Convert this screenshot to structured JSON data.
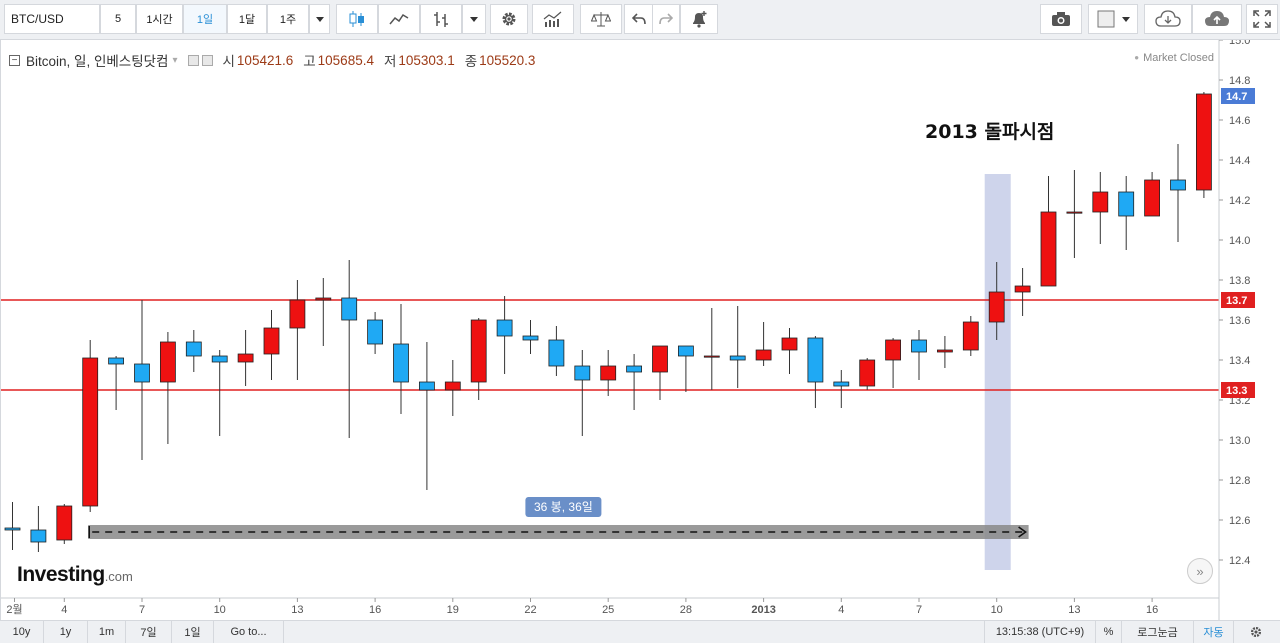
{
  "toolbar": {
    "symbol_value": "BTC/USD",
    "interval_value": "5",
    "timeframes": [
      "1시간",
      "1일",
      "1달",
      "1주"
    ],
    "active_timeframe": "1일",
    "icons": [
      "candlestick-icon",
      "line-chart-icon",
      "bar-chart-icon",
      "settings-gear-icon",
      "indicators-icon",
      "compare-scale-icon",
      "undo-icon",
      "redo-icon",
      "alert-bell-icon",
      "camera-icon",
      "color-square-icon",
      "cloud-download-icon",
      "cloud-upload-icon",
      "fullscreen-icon"
    ]
  },
  "legend": {
    "symbol": "Bitcoin, 일, 인베스팅닷컴",
    "open_label": "시",
    "open": "105421.6",
    "high_label": "고",
    "high": "105685.4",
    "low_label": "저",
    "low": "105303.1",
    "close_label": "종",
    "close": "105520.3"
  },
  "market_status": "Market Closed",
  "annotation_text": "2013 돌파시점",
  "measure_label": "36 봉, 36일",
  "logo": {
    "brand": "Investing",
    "suffix": ".com"
  },
  "scroll_button": "»",
  "colors": {
    "up": "#ee1111",
    "down": "#1fa9f4",
    "level_line": "#e02020",
    "current_price": "#4a7bd6",
    "highlight": "#b9c2e3",
    "measure": "#888888"
  },
  "chart_data": {
    "type": "candlestick",
    "ylim": [
      12.3,
      15.0
    ],
    "yticks": [
      "15.0",
      "14.8",
      "14.6",
      "14.4",
      "14.2",
      "14.0",
      "13.8",
      "13.6",
      "13.4",
      "13.2",
      "13.0",
      "12.8",
      "12.6",
      "12.4"
    ],
    "xticks": [
      {
        "label": "2월",
        "index": 0
      },
      {
        "label": "4",
        "index": 2
      },
      {
        "label": "7",
        "index": 5
      },
      {
        "label": "10",
        "index": 8
      },
      {
        "label": "13",
        "index": 11
      },
      {
        "label": "16",
        "index": 14
      },
      {
        "label": "19",
        "index": 17
      },
      {
        "label": "22",
        "index": 20
      },
      {
        "label": "25",
        "index": 23
      },
      {
        "label": "28",
        "index": 26
      },
      {
        "label": "2013",
        "index": 29
      },
      {
        "label": "4",
        "index": 32
      },
      {
        "label": "7",
        "index": 35
      },
      {
        "label": "10",
        "index": 38
      },
      {
        "label": "13",
        "index": 41
      },
      {
        "label": "16",
        "index": 44
      }
    ],
    "candles": [
      {
        "o": 12.56,
        "h": 12.69,
        "l": 12.45,
        "c": 12.55
      },
      {
        "o": 12.55,
        "h": 12.67,
        "l": 12.44,
        "c": 12.49
      },
      {
        "o": 12.5,
        "h": 12.68,
        "l": 12.48,
        "c": 12.67
      },
      {
        "o": 12.67,
        "h": 13.5,
        "l": 12.64,
        "c": 13.41
      },
      {
        "o": 13.41,
        "h": 13.42,
        "l": 13.15,
        "c": 13.38
      },
      {
        "o": 13.38,
        "h": 13.7,
        "l": 12.9,
        "c": 13.29
      },
      {
        "o": 13.29,
        "h": 13.54,
        "l": 12.98,
        "c": 13.49
      },
      {
        "o": 13.49,
        "h": 13.55,
        "l": 13.34,
        "c": 13.42
      },
      {
        "o": 13.42,
        "h": 13.45,
        "l": 13.02,
        "c": 13.39
      },
      {
        "o": 13.39,
        "h": 13.55,
        "l": 13.27,
        "c": 13.43
      },
      {
        "o": 13.43,
        "h": 13.65,
        "l": 13.3,
        "c": 13.56
      },
      {
        "o": 13.56,
        "h": 13.8,
        "l": 13.3,
        "c": 13.7
      },
      {
        "o": 13.7,
        "h": 13.81,
        "l": 13.47,
        "c": 13.71
      },
      {
        "o": 13.71,
        "h": 13.9,
        "l": 13.01,
        "c": 13.6
      },
      {
        "o": 13.6,
        "h": 13.64,
        "l": 13.43,
        "c": 13.48
      },
      {
        "o": 13.48,
        "h": 13.68,
        "l": 13.13,
        "c": 13.29
      },
      {
        "o": 13.29,
        "h": 13.49,
        "l": 12.75,
        "c": 13.25
      },
      {
        "o": 13.25,
        "h": 13.4,
        "l": 13.12,
        "c": 13.29
      },
      {
        "o": 13.29,
        "h": 13.61,
        "l": 13.2,
        "c": 13.6
      },
      {
        "o": 13.6,
        "h": 13.72,
        "l": 13.33,
        "c": 13.52
      },
      {
        "o": 13.52,
        "h": 13.6,
        "l": 13.43,
        "c": 13.5
      },
      {
        "o": 13.5,
        "h": 13.57,
        "l": 13.32,
        "c": 13.37
      },
      {
        "o": 13.37,
        "h": 13.45,
        "l": 13.02,
        "c": 13.3
      },
      {
        "o": 13.3,
        "h": 13.45,
        "l": 13.22,
        "c": 13.37
      },
      {
        "o": 13.37,
        "h": 13.43,
        "l": 13.15,
        "c": 13.34
      },
      {
        "o": 13.34,
        "h": 13.47,
        "l": 13.2,
        "c": 13.47
      },
      {
        "o": 13.47,
        "h": 13.47,
        "l": 13.24,
        "c": 13.42
      },
      {
        "o": 13.42,
        "h": 13.66,
        "l": 13.25,
        "c": 13.42
      },
      {
        "o": 13.42,
        "h": 13.67,
        "l": 13.26,
        "c": 13.4
      },
      {
        "o": 13.4,
        "h": 13.59,
        "l": 13.37,
        "c": 13.45
      },
      {
        "o": 13.45,
        "h": 13.56,
        "l": 13.33,
        "c": 13.51
      },
      {
        "o": 13.51,
        "h": 13.52,
        "l": 13.16,
        "c": 13.29
      },
      {
        "o": 13.29,
        "h": 13.35,
        "l": 13.16,
        "c": 13.27
      },
      {
        "o": 13.27,
        "h": 13.41,
        "l": 13.25,
        "c": 13.4
      },
      {
        "o": 13.4,
        "h": 13.51,
        "l": 13.26,
        "c": 13.5
      },
      {
        "o": 13.5,
        "h": 13.55,
        "l": 13.3,
        "c": 13.44
      },
      {
        "o": 13.44,
        "h": 13.52,
        "l": 13.36,
        "c": 13.45
      },
      {
        "o": 13.45,
        "h": 13.62,
        "l": 13.42,
        "c": 13.59
      },
      {
        "o": 13.59,
        "h": 13.89,
        "l": 13.5,
        "c": 13.74
      },
      {
        "o": 13.74,
        "h": 13.86,
        "l": 13.62,
        "c": 13.77
      },
      {
        "o": 13.77,
        "h": 14.32,
        "l": 13.77,
        "c": 14.14
      },
      {
        "o": 14.14,
        "h": 14.35,
        "l": 13.91,
        "c": 14.14
      },
      {
        "o": 14.14,
        "h": 14.34,
        "l": 13.98,
        "c": 14.24
      },
      {
        "o": 14.24,
        "h": 14.32,
        "l": 13.95,
        "c": 14.12
      },
      {
        "o": 14.12,
        "h": 14.34,
        "l": 14.12,
        "c": 14.3
      },
      {
        "o": 14.3,
        "h": 14.48,
        "l": 13.99,
        "c": 14.25
      },
      {
        "o": 14.25,
        "h": 14.74,
        "l": 14.21,
        "c": 14.73
      }
    ],
    "hlines": [
      {
        "value": 13.7,
        "label": "13.7"
      },
      {
        "value": 13.25,
        "label": "13.3"
      }
    ],
    "current_price": {
      "value": 14.72,
      "label": "14.7"
    },
    "highlight_band_index": 38,
    "measure": {
      "from_index": 3,
      "to_index": 39,
      "value": 12.54
    }
  },
  "bottombar": {
    "ranges": [
      "10y",
      "1y",
      "1m",
      "7일",
      "1일",
      "Go to..."
    ],
    "clock": "13:15:38 (UTC+9)",
    "percent": "%",
    "log": "로그눈금",
    "auto": "자동"
  }
}
